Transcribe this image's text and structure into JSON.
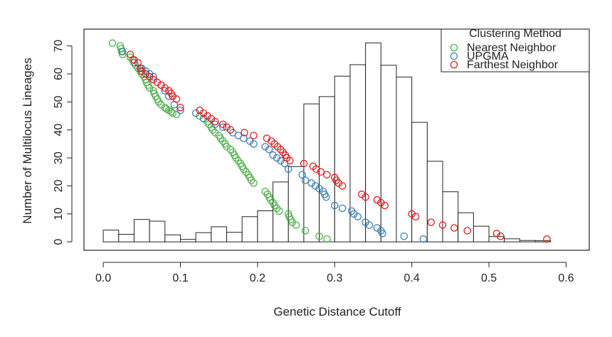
{
  "chart_data": {
    "type": "scatter",
    "title": "",
    "xlabel": "Genetic Distance Cutoff",
    "ylabel": "Number of Multilocus Lineages",
    "xlim": [
      -0.025,
      0.63
    ],
    "ylim": [
      -3,
      76
    ],
    "x_ticks": [
      0.0,
      0.1,
      0.2,
      0.3,
      0.4,
      0.5,
      0.6
    ],
    "x_tick_labels": [
      "0.0",
      "0.1",
      "0.2",
      "0.3",
      "0.4",
      "0.5",
      "0.6"
    ],
    "y_ticks": [
      0,
      10,
      20,
      30,
      40,
      50,
      60,
      70
    ],
    "y_tick_labels": [
      "0",
      "10",
      "20",
      "30",
      "40",
      "50",
      "60",
      "70"
    ],
    "grid": false,
    "legend": {
      "title": "Clustering Method",
      "placement": "top-right",
      "entries": [
        "Nearest Neighbor",
        "UPGMA",
        "Farthest Neighbor"
      ]
    },
    "histogram": {
      "bin_width": 0.02,
      "bin_starts": [
        0.0,
        0.02,
        0.04,
        0.06,
        0.08,
        0.1,
        0.12,
        0.14,
        0.16,
        0.18,
        0.2,
        0.22,
        0.24,
        0.26,
        0.28,
        0.3,
        0.32,
        0.34,
        0.36,
        0.38,
        0.4,
        0.42,
        0.44,
        0.46,
        0.48,
        0.5,
        0.52,
        0.54,
        0.56
      ],
      "heights": [
        4.2,
        2.7,
        8.0,
        7.4,
        2.5,
        0.9,
        3.3,
        5.4,
        3.4,
        9.0,
        11.1,
        21.4,
        26.9,
        49.3,
        51.9,
        59.2,
        63.3,
        71.1,
        63.1,
        58.9,
        42.7,
        28.8,
        17.9,
        10.4,
        5.6,
        1.9,
        1.1,
        0.5,
        0.4
      ]
    },
    "series": [
      {
        "name": "Nearest Neighbor",
        "color": "#4daf4a",
        "x": [
          0.012,
          0.022,
          0.023,
          0.024,
          0.025,
          0.035,
          0.038,
          0.04,
          0.042,
          0.045,
          0.048,
          0.05,
          0.053,
          0.055,
          0.056,
          0.058,
          0.06,
          0.065,
          0.066,
          0.068,
          0.07,
          0.072,
          0.075,
          0.08,
          0.082,
          0.085,
          0.088,
          0.09,
          0.095,
          0.125,
          0.13,
          0.135,
          0.137,
          0.14,
          0.142,
          0.145,
          0.15,
          0.152,
          0.155,
          0.158,
          0.16,
          0.165,
          0.168,
          0.17,
          0.172,
          0.175,
          0.178,
          0.18,
          0.182,
          0.185,
          0.188,
          0.19,
          0.192,
          0.195,
          0.21,
          0.213,
          0.215,
          0.217,
          0.22,
          0.222,
          0.225,
          0.228,
          0.24,
          0.241,
          0.243,
          0.245,
          0.25,
          0.262,
          0.28,
          0.29
        ],
        "y": [
          71,
          70,
          69,
          68,
          67,
          66,
          65,
          64,
          63,
          62,
          61,
          60,
          59,
          58,
          57,
          56,
          55,
          54,
          53,
          52,
          51,
          50,
          49,
          48,
          47.5,
          47,
          46.5,
          46,
          45.5,
          45,
          44,
          43,
          42,
          41,
          40,
          39,
          38,
          37,
          36,
          35,
          34,
          33,
          32,
          31,
          30,
          29,
          28,
          27,
          26,
          25,
          24,
          23,
          22,
          21,
          18,
          17,
          16,
          15,
          14,
          13,
          12,
          11,
          10,
          9,
          8,
          7,
          6,
          4,
          2,
          1
        ]
      },
      {
        "name": "UPGMA",
        "color": "#377eb8",
        "x": [
          0.025,
          0.04,
          0.05,
          0.055,
          0.06,
          0.065,
          0.075,
          0.08,
          0.085,
          0.092,
          0.1,
          0.12,
          0.13,
          0.145,
          0.155,
          0.168,
          0.175,
          0.182,
          0.19,
          0.195,
          0.21,
          0.215,
          0.22,
          0.225,
          0.23,
          0.235,
          0.24,
          0.258,
          0.262,
          0.27,
          0.275,
          0.28,
          0.285,
          0.287,
          0.289,
          0.3,
          0.31,
          0.322,
          0.325,
          0.33,
          0.34,
          0.345,
          0.355,
          0.36,
          0.362,
          0.39,
          0.415
        ],
        "y": [
          68,
          64,
          62,
          61,
          60,
          59,
          56,
          54,
          52,
          49,
          47,
          46,
          44,
          42,
          41,
          39,
          38,
          37,
          36,
          35,
          34,
          33,
          31,
          30,
          29,
          28,
          26,
          24,
          22,
          21,
          20,
          19,
          18,
          17,
          16,
          13,
          12,
          11,
          10,
          9,
          7,
          6,
          5,
          4,
          3,
          2,
          1
        ]
      },
      {
        "name": "Farthest Neighbor",
        "color": "#e41a1c",
        "x": [
          0.035,
          0.04,
          0.045,
          0.048,
          0.05,
          0.055,
          0.06,
          0.065,
          0.07,
          0.075,
          0.08,
          0.085,
          0.088,
          0.09,
          0.095,
          0.1,
          0.125,
          0.13,
          0.135,
          0.14,
          0.145,
          0.155,
          0.16,
          0.165,
          0.183,
          0.195,
          0.212,
          0.218,
          0.222,
          0.226,
          0.23,
          0.233,
          0.236,
          0.238,
          0.242,
          0.26,
          0.272,
          0.276,
          0.282,
          0.29,
          0.3,
          0.302,
          0.305,
          0.31,
          0.335,
          0.34,
          0.355,
          0.36,
          0.365,
          0.4,
          0.405,
          0.425,
          0.44,
          0.455,
          0.472,
          0.51,
          0.515,
          0.575
        ],
        "y": [
          67,
          65,
          64,
          62,
          61,
          60,
          59,
          58,
          57,
          56,
          55,
          54,
          53,
          52,
          51,
          48,
          47,
          46,
          45,
          44,
          43,
          42,
          41,
          40,
          39,
          38,
          37,
          36,
          35,
          34,
          33,
          32,
          31,
          30,
          29,
          28,
          27,
          26,
          25,
          24,
          23,
          22,
          21,
          20,
          17,
          16,
          15,
          14,
          13,
          10,
          9,
          7,
          6,
          5,
          4,
          3,
          2,
          1
        ]
      }
    ]
  }
}
